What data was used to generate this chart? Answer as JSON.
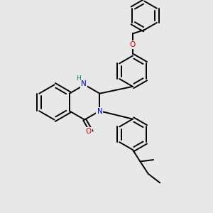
{
  "background_color": "#e8e8e8",
  "bond_color": "#000000",
  "N_color": "#0000cc",
  "O_color": "#cc0000",
  "H_color": "#008080",
  "figsize": [
    3.0,
    3.0
  ],
  "dpi": 100,
  "xlim": [
    0,
    10
  ],
  "ylim": [
    0,
    10
  ]
}
